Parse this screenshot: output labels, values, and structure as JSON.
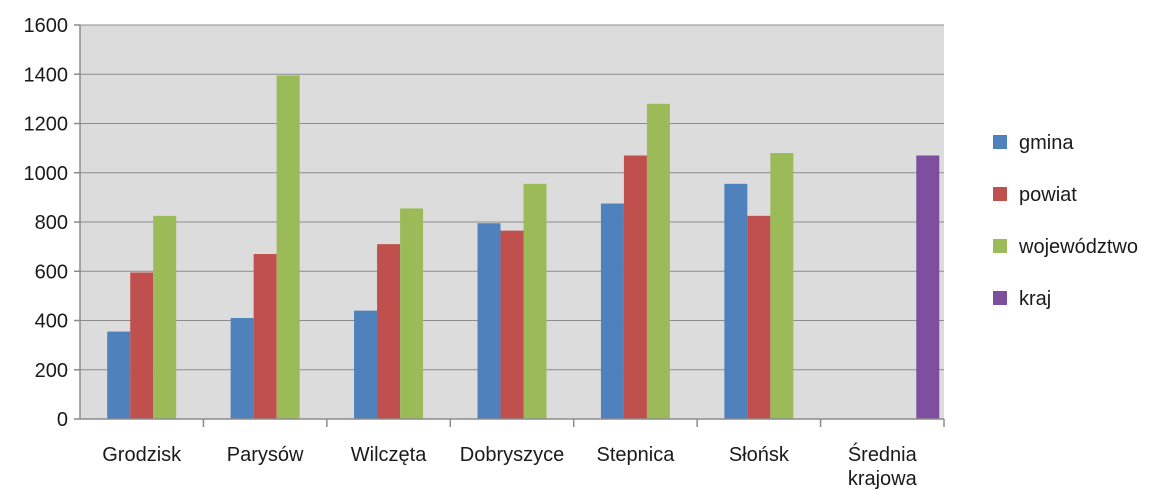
{
  "chart_data": {
    "type": "bar",
    "categories": [
      "Grodzisk",
      "Parysów",
      "Wilczęta",
      "Dobryszyce",
      "Stepnica",
      "Słońsk",
      "Średnia krajowa"
    ],
    "category_lines": [
      [
        "Grodzisk"
      ],
      [
        "Parysów"
      ],
      [
        "Wilczęta"
      ],
      [
        "Dobryszyce"
      ],
      [
        "Stepnica"
      ],
      [
        "Słońsk"
      ],
      [
        "Średnia",
        "krajowa"
      ]
    ],
    "series": [
      {
        "name": "gmina",
        "color": "#4f81bd",
        "values": [
          355,
          410,
          440,
          795,
          875,
          955,
          null
        ]
      },
      {
        "name": "powiat",
        "color": "#c0504d",
        "values": [
          595,
          670,
          710,
          765,
          1070,
          825,
          null
        ]
      },
      {
        "name": "województwo",
        "color": "#9bbb59",
        "values": [
          825,
          1395,
          855,
          955,
          1280,
          1080,
          null
        ]
      },
      {
        "name": "kraj",
        "color": "#7f4f9f",
        "values": [
          null,
          null,
          null,
          null,
          null,
          null,
          1070
        ]
      }
    ],
    "y_ticks": [
      "0",
      "200",
      "400",
      "600",
      "800",
      "1000",
      "1200",
      "1400",
      "1600"
    ],
    "ylim": [
      0,
      1600
    ],
    "grid": true,
    "plot_background": "#dcdcdc",
    "legend_position": "right"
  }
}
